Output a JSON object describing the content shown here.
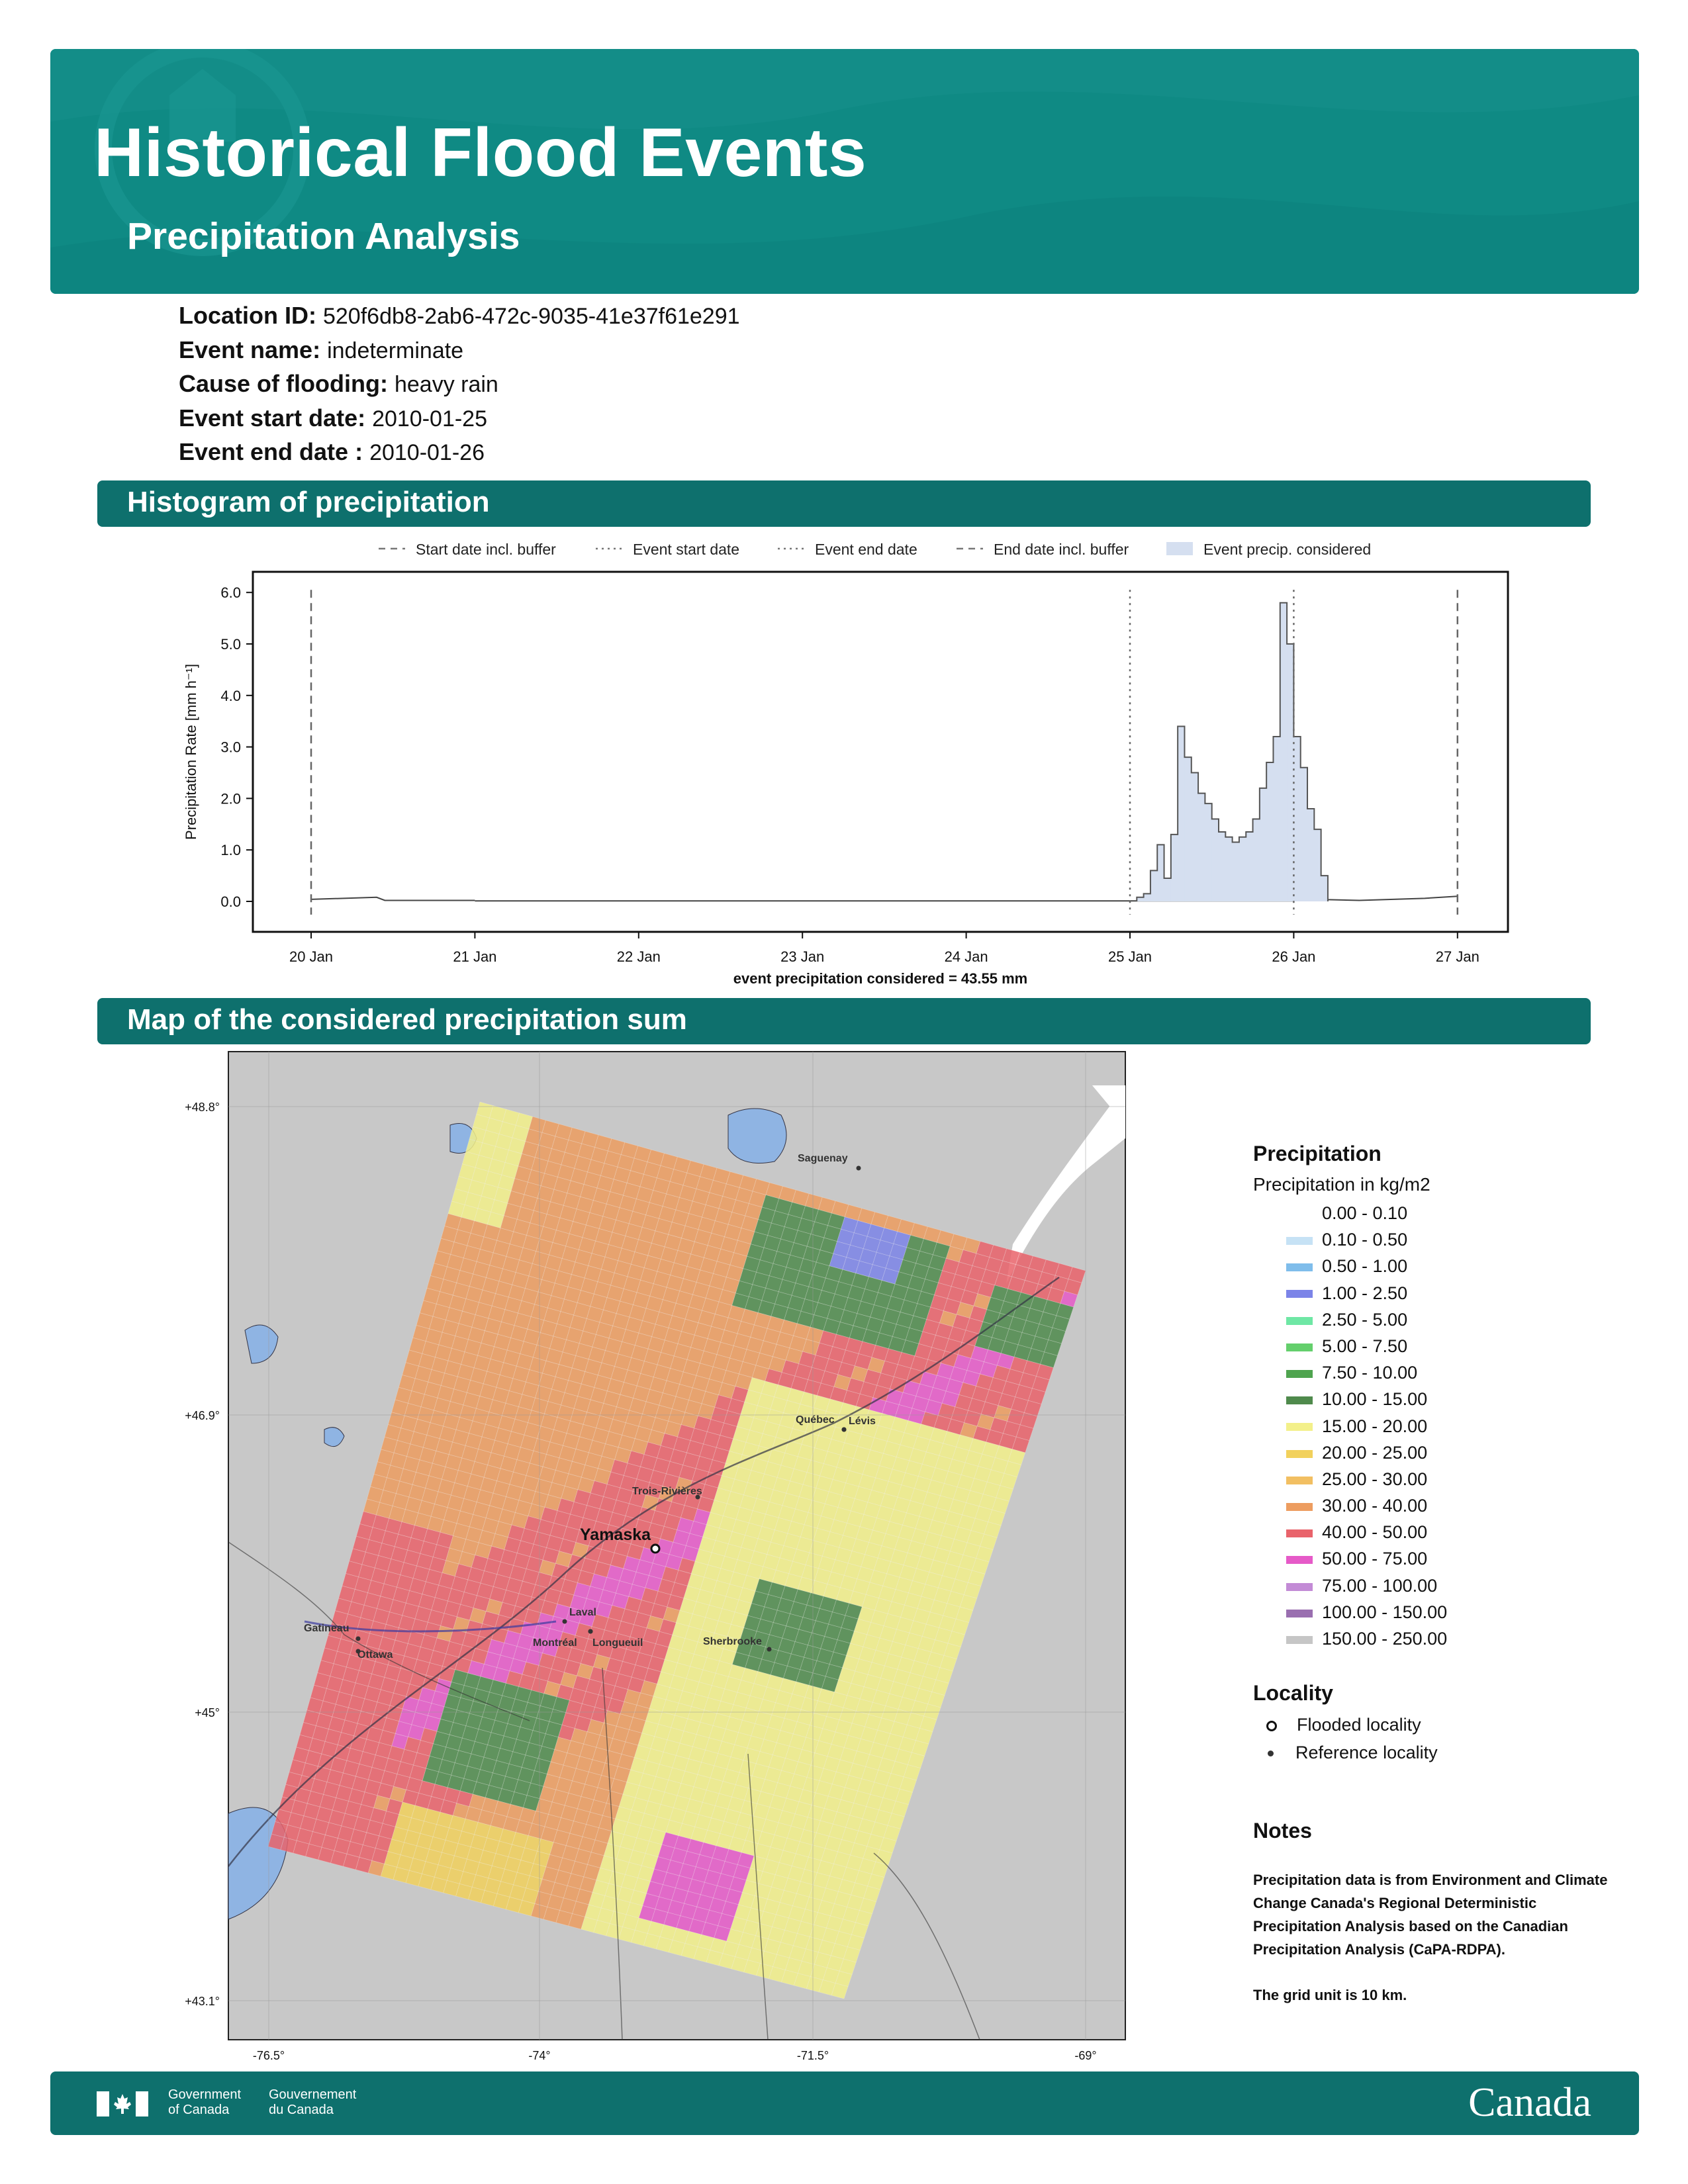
{
  "header": {
    "title": "Historical Flood Events",
    "subtitle": "Precipitation Analysis"
  },
  "event": {
    "location_id_label": "Location ID:",
    "location_id": "520f6db8-2ab6-472c-9035-41e37f61e291",
    "event_name_label": "Event name:",
    "event_name": "indeterminate",
    "cause_label": "Cause of flooding:",
    "cause": "heavy rain",
    "start_label": "Event start date:",
    "start": "2010-01-25",
    "end_label": "Event end date :",
    "end": "2010-01-26"
  },
  "sections": {
    "histogram": "Histogram of precipitation",
    "map": "Map of the considered precipitation sum"
  },
  "chart_data": {
    "type": "bar",
    "ylabel": "Precipitation Rate [mm h⁻¹]",
    "xlabel": "event precipitation considered = 43.55 mm",
    "ylim": [
      0,
      6.5
    ],
    "yticks": [
      "0.0",
      "1.0",
      "2.0",
      "3.0",
      "4.0",
      "5.0",
      "6.0"
    ],
    "xticks": [
      "20 Jan",
      "21 Jan",
      "22 Jan",
      "23 Jan",
      "24 Jan",
      "25 Jan",
      "26 Jan",
      "27 Jan"
    ],
    "legend": [
      "Start date incl. buffer",
      "Event start date",
      "Event end date",
      "End date incl. buffer",
      "Event precip. considered"
    ],
    "markers_day_offset": {
      "start_buffer": 0,
      "event_start": 5,
      "event_end": 6,
      "end_buffer": 7
    },
    "baseline_noise": {
      "start": [
        [
          0.0,
          0.04
        ],
        [
          0.2,
          0.06
        ],
        [
          0.4,
          0.08
        ],
        [
          0.45,
          0.02
        ],
        [
          1.0,
          0.02
        ]
      ],
      "end": [
        [
          6.0,
          0.05
        ],
        [
          6.4,
          0.02
        ],
        [
          6.8,
          0.06
        ],
        [
          7.0,
          0.1
        ]
      ]
    },
    "bin_hours": 1,
    "event_values": [
      0.08,
      0.15,
      0.6,
      1.1,
      0.45,
      1.3,
      3.4,
      2.8,
      2.5,
      2.1,
      1.9,
      1.6,
      1.35,
      1.25,
      1.15,
      1.25,
      1.35,
      1.6,
      2.2,
      2.7,
      3.2,
      5.8,
      5.0,
      3.2,
      2.6,
      1.8,
      1.4,
      0.5
    ]
  },
  "map": {
    "lat_ticks": [
      "+48.8°",
      "+46.9°",
      "+45°",
      "+43.1°"
    ],
    "lon_ticks": [
      "-76.5°",
      "-74°",
      "-71.5°",
      "-69°"
    ],
    "places": [
      {
        "name": "Saguenay",
        "kind": "reference"
      },
      {
        "name": "Québec",
        "kind": "reference"
      },
      {
        "name": "Lévis",
        "kind": "reference"
      },
      {
        "name": "Trois-Rivières",
        "kind": "reference"
      },
      {
        "name": "Yamaska",
        "kind": "flooded"
      },
      {
        "name": "Gatineau",
        "kind": "reference"
      },
      {
        "name": "Ottawa",
        "kind": "reference"
      },
      {
        "name": "Laval",
        "kind": "reference"
      },
      {
        "name": "Montréal",
        "kind": "reference"
      },
      {
        "name": "Longueuil",
        "kind": "reference"
      },
      {
        "name": "Sherbrooke",
        "kind": "reference"
      }
    ]
  },
  "legend": {
    "title": "Precipitation",
    "subtitle": "Precipitation in kg/m2",
    "items": [
      {
        "label": "0.00 - 0.10",
        "color": "#ffffff"
      },
      {
        "label": "0.10 - 0.50",
        "color": "#c6e2f5"
      },
      {
        "label": "0.50 - 1.00",
        "color": "#7fbdeb"
      },
      {
        "label": "1.00 - 2.50",
        "color": "#7c84e8"
      },
      {
        "label": "2.50 - 5.00",
        "color": "#6fe7a5"
      },
      {
        "label": "5.00 - 7.50",
        "color": "#64cf6c"
      },
      {
        "label": "7.50 - 10.00",
        "color": "#4fa44f"
      },
      {
        "label": "10.00 - 15.00",
        "color": "#4f8a4c"
      },
      {
        "label": "15.00 - 20.00",
        "color": "#f3f08a"
      },
      {
        "label": "20.00 - 25.00",
        "color": "#f2d15c"
      },
      {
        "label": "25.00 - 30.00",
        "color": "#f2bf62"
      },
      {
        "label": "30.00 - 40.00",
        "color": "#ed9d60"
      },
      {
        "label": "40.00 - 50.00",
        "color": "#e9636b"
      },
      {
        "label": "50.00 - 75.00",
        "color": "#e65ac8"
      },
      {
        "label": "75.00 - 100.00",
        "color": "#c38bd6"
      },
      {
        "label": "100.00 - 150.00",
        "color": "#9a6fb0"
      },
      {
        "label": "150.00 - 250.00",
        "color": "#c6c6c6"
      }
    ]
  },
  "locality": {
    "title": "Locality",
    "flooded": "Flooded locality",
    "reference": "Reference locality"
  },
  "notes": {
    "title": "Notes",
    "text1": "Precipitation data is from Environment and Climate Change Canada's Regional Deterministic Precipitation Analysis based on the Canadian Precipitation Analysis (CaPA-RDPA).",
    "text2": "The grid unit is 10 km."
  },
  "footer": {
    "gov_en_1": "Government",
    "gov_en_2": "of Canada",
    "gov_fr_1": "Gouvernement",
    "gov_fr_2": "du Canada",
    "wordmark": "Canada"
  },
  "colors": {
    "banner": "#0f8a84",
    "bar": "#0e706d",
    "hist_fill": "#d5dff0"
  }
}
